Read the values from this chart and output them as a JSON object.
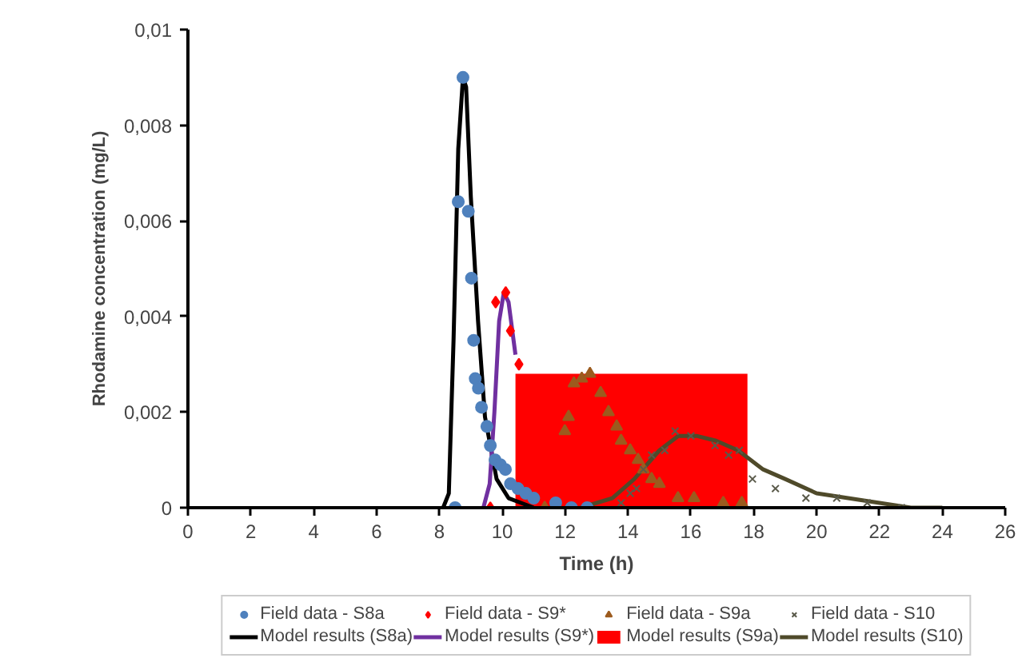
{
  "chart_data": {
    "type": "scatter",
    "xlabel": "Time (h)",
    "ylabel": "Rhodamine concentration (mg/L)",
    "xlim": [
      0,
      26
    ],
    "xticks": [
      0,
      2,
      4,
      6,
      8,
      10,
      12,
      14,
      16,
      18,
      20,
      22,
      24,
      26
    ],
    "ylim": [
      0,
      0.01
    ],
    "yticks": [
      {
        "value": 0,
        "label": "0"
      },
      {
        "value": 0.002,
        "label": "0,002"
      },
      {
        "value": 0.004,
        "label": "0,004"
      },
      {
        "value": 0.006,
        "label": "0,006"
      },
      {
        "value": 0.008,
        "label": "0,008"
      },
      {
        "value": 0.01,
        "label": "0,01"
      }
    ],
    "grid": false,
    "legend": "bottom",
    "series": [
      {
        "name": "Field data - S8a",
        "marker": "circle",
        "color": "#4f81bd",
        "x": [
          8.5,
          8.6,
          8.75,
          8.92,
          9.02,
          9.09,
          9.14,
          9.24,
          9.34,
          9.51,
          9.62,
          9.77,
          9.94,
          10.1,
          10.26,
          10.5,
          10.75,
          11.0,
          11.7,
          12.2,
          12.7
        ],
        "values": [
          0,
          0.0064,
          0.009,
          0.0062,
          0.0048,
          0.0035,
          0.0027,
          0.0025,
          0.0021,
          0.0017,
          0.0013,
          0.001,
          0.0009,
          0.0008,
          0.0005,
          0.0004,
          0.0003,
          0.0002,
          0.0001,
          0,
          0
        ]
      },
      {
        "name": "Field data - S9*",
        "marker": "diamond",
        "color": "#ff0000",
        "x": [
          9.62,
          9.79,
          10.11,
          10.26,
          10.53
        ],
        "values": [
          0,
          0.0043,
          0.0045,
          0.0037,
          0.003
        ]
      },
      {
        "name": "Field data - S9a",
        "marker": "triangle",
        "color": "#9c5b1e",
        "x": [
          11.35,
          11.99,
          12.11,
          12.28,
          12.53,
          12.79,
          13.13,
          13.38,
          13.64,
          13.78,
          14.07,
          14.32,
          14.49,
          14.75,
          15.0,
          15.59,
          16.1,
          17.03,
          17.62
        ],
        "values": [
          0,
          0.0016,
          0.0019,
          0.0026,
          0.0027,
          0.0028,
          0.0024,
          0.002,
          0.0017,
          0.0014,
          0.0012,
          0.001,
          0.0008,
          0.0006,
          0.0005,
          0.0002,
          0.0002,
          0.0001,
          0.0001
        ]
      },
      {
        "name": "Field data - S10",
        "marker": "cross",
        "color": "#5a5a4a",
        "x": [
          13.78,
          14.07,
          14.27,
          14.49,
          14.75,
          15.17,
          15.5,
          16.0,
          16.77,
          17.2,
          17.54,
          17.96,
          18.69,
          19.66,
          20.64,
          21.61,
          22.7
        ],
        "values": [
          0.0001,
          0.0003,
          0.0004,
          0.0008,
          0.0011,
          0.0012,
          0.0016,
          0.0015,
          0.0013,
          0.0011,
          0.0012,
          0.0006,
          0.0004,
          0.0002,
          0.0002,
          0.0001,
          0
        ]
      },
      {
        "name": "Model results (S8a)",
        "type": "line",
        "color": "#000000",
        "x": [
          8.12,
          8.3,
          8.45,
          8.6,
          8.75,
          8.85,
          9.0,
          9.23,
          9.45,
          9.82,
          10.2,
          10.6,
          11.0
        ],
        "values": [
          0,
          0.0003,
          0.0035,
          0.0075,
          0.009,
          0.0088,
          0.0065,
          0.0039,
          0.0019,
          0.0006,
          0.0002,
          0.0001,
          0
        ]
      },
      {
        "name": "Model results (S9*)",
        "type": "line",
        "color": "#7030a0",
        "x": [
          9.4,
          9.6,
          9.75,
          9.9,
          10.05,
          10.2,
          10.42
        ],
        "values": [
          0,
          0.0005,
          0.002,
          0.0039,
          0.0045,
          0.0043,
          0.0032
        ]
      },
      {
        "name": "Model results (S9a)",
        "type": "area",
        "color": "#ff0000",
        "x": [
          10.42,
          17.8
        ],
        "values": [
          0.0028,
          0.0028
        ]
      },
      {
        "name": "Model results (S10)",
        "type": "line",
        "color": "#4f4a2a",
        "x": [
          12.5,
          13.5,
          14.2,
          15.0,
          15.6,
          16.2,
          16.8,
          17.5,
          18.3,
          19.0,
          20.0,
          21.0,
          22.0,
          23.0,
          24.0
        ],
        "values": [
          0,
          0.0002,
          0.0006,
          0.0012,
          0.0015,
          0.0015,
          0.0014,
          0.0012,
          0.0008,
          0.0006,
          0.0003,
          0.0002,
          0.0001,
          0,
          0
        ]
      }
    ]
  }
}
